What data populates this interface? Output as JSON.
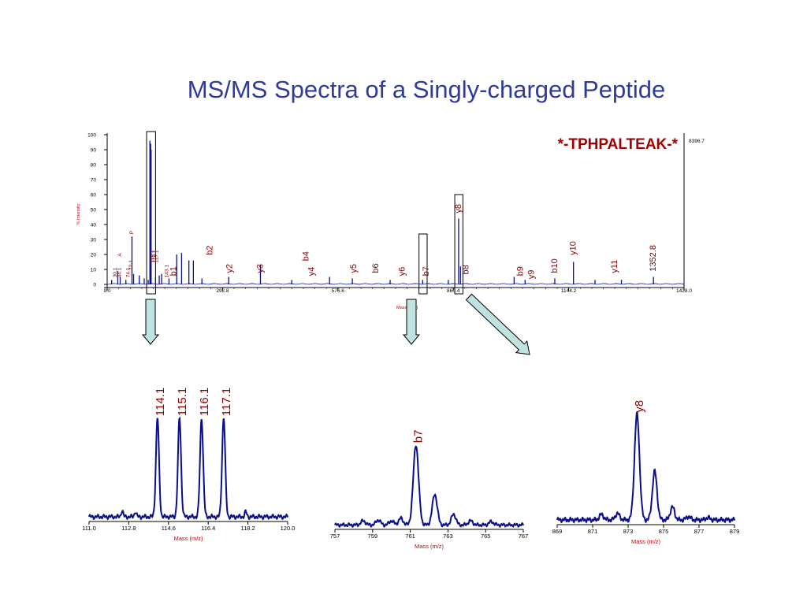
{
  "title": "MS/MS Spectra of a Singly-charged Peptide",
  "colors": {
    "title": "#2e3b9b",
    "trace": "#0a0f8a",
    "label": "#8b0000",
    "axis": "#000000",
    "arrow_fill": "#bfe3e0"
  },
  "chart_data": [
    {
      "type": "line",
      "name": "full-spectrum",
      "peptide": "*-TPHPALTEAK-*",
      "max_intensity_label": "8396.7",
      "ylabel": "% Intensity",
      "xlabel": "Mass (m/z)",
      "xlim": [
        9.0,
        1428.0
      ],
      "ylim": [
        0,
        100
      ],
      "x_ticks": [
        "9.0",
        "292.8",
        "576.6",
        "860.4",
        "1144.2",
        "1428.0"
      ],
      "y_ticks": [
        "0",
        "10",
        "20",
        "30",
        "40",
        "50",
        "60",
        "70",
        "80",
        "90",
        "100"
      ],
      "peaks": [
        {
          "x": 20.0,
          "y": 3
        },
        {
          "x": 35.0,
          "y": 9
        },
        {
          "x": 41.0,
          "y": 5
        },
        {
          "x": 55.0,
          "y": 3
        },
        {
          "x": 70.0,
          "y": 32
        },
        {
          "x": 74.0,
          "y": 7
        },
        {
          "x": 88.0,
          "y": 6
        },
        {
          "x": 100.0,
          "y": 4
        },
        {
          "x": 110.0,
          "y": 3
        },
        {
          "x": 114.1,
          "y": 96
        },
        {
          "x": 115.1,
          "y": 85
        },
        {
          "x": 116.1,
          "y": 94
        },
        {
          "x": 117.1,
          "y": 90
        },
        {
          "x": 128.0,
          "y": 5
        },
        {
          "x": 137.0,
          "y": 6
        },
        {
          "x": 143.0,
          "y": 7
        },
        {
          "x": 161.0,
          "y": 4
        },
        {
          "x": 180.0,
          "y": 20
        },
        {
          "x": 192.0,
          "y": 21
        },
        {
          "x": 210.0,
          "y": 16
        },
        {
          "x": 221.0,
          "y": 16
        },
        {
          "x": 242.0,
          "y": 4
        },
        {
          "x": 308.0,
          "y": 5
        },
        {
          "x": 386.0,
          "y": 13
        },
        {
          "x": 463.0,
          "y": 3
        },
        {
          "x": 556.0,
          "y": 5
        },
        {
          "x": 612.0,
          "y": 4
        },
        {
          "x": 705.0,
          "y": 3
        },
        {
          "x": 785.0,
          "y": 3
        },
        {
          "x": 848.0,
          "y": 3
        },
        {
          "x": 873.5,
          "y": 44
        },
        {
          "x": 878.0,
          "y": 12
        },
        {
          "x": 1010.0,
          "y": 5
        },
        {
          "x": 1037.0,
          "y": 3
        },
        {
          "x": 1110.0,
          "y": 4
        },
        {
          "x": 1156.0,
          "y": 15
        },
        {
          "x": 1209.0,
          "y": 3
        },
        {
          "x": 1274.0,
          "y": 3
        },
        {
          "x": 1352.8,
          "y": 5
        }
      ],
      "annotations": [
        {
          "text": "b2",
          "x": 262.0,
          "y": 18
        },
        {
          "text": "y2",
          "x": 311.0,
          "y": 6
        },
        {
          "text": "y3",
          "x": 386.0,
          "y": 6
        },
        {
          "text": "b4",
          "x": 499.0,
          "y": 14
        },
        {
          "text": "y4",
          "x": 512.0,
          "y": 4
        },
        {
          "text": "y5",
          "x": 616.0,
          "y": 6
        },
        {
          "text": "b6",
          "x": 670.0,
          "y": 6
        },
        {
          "text": "y6",
          "x": 735.0,
          "y": 4
        },
        {
          "text": "b7",
          "x": 794.0,
          "y": 4
        },
        {
          "text": "b8",
          "x": 892.0,
          "y": 5
        },
        {
          "text": "y8",
          "x": 873.5,
          "y": 46
        },
        {
          "text": "b9",
          "x": 1026.0,
          "y": 4
        },
        {
          "text": "y9",
          "x": 1053.0,
          "y": 2
        },
        {
          "text": "b10",
          "x": 1110.0,
          "y": 6
        },
        {
          "text": "y10",
          "x": 1156.0,
          "y": 18
        },
        {
          "text": "y11",
          "x": 1258.0,
          "y": 6
        },
        {
          "text": "1352.8",
          "x": 1352.8,
          "y": 7
        },
        {
          "text": "b1",
          "x": 173.0,
          "y": 4
        },
        {
          "text": "P",
          "x": 70.0,
          "y": 32
        },
        {
          "text": "A",
          "x": 41.0,
          "y": 17
        },
        {
          "text": "30.1",
          "x": 29.0,
          "y": 3
        },
        {
          "text": "44.1",
          "x": 40.0,
          "y": 3
        },
        {
          "text": "72.1",
          "x": 68.0,
          "y": 8
        },
        {
          "text": "74.1",
          "x": 61.0,
          "y": 3
        },
        {
          "text": "114.1",
          "x": 119.0,
          "y": 13
        },
        {
          "text": "116.1",
          "x": 125.0,
          "y": 13
        },
        {
          "text": "117.1",
          "x": 131.0,
          "y": 13
        },
        {
          "text": "143.1",
          "x": 156.0,
          "y": 3
        }
      ],
      "highlight_boxes": [
        {
          "x1": 106.0,
          "x2": 128.0
        },
        {
          "x1": 776.0,
          "x2": 796.0
        },
        {
          "x1": 864.0,
          "x2": 884.0
        }
      ]
    },
    {
      "type": "line",
      "name": "zoom-reporter-ions",
      "xlabel": "Mass (m/z)",
      "xlim": [
        111.0,
        120.0
      ],
      "x_ticks": [
        "111.0",
        "112.8",
        "114.6",
        "116.4",
        "118.2",
        "120.0"
      ],
      "peaks": [
        {
          "x": 112.5,
          "y": 0.06,
          "w": 0.045
        },
        {
          "x": 113.1,
          "y": 0.05,
          "w": 0.045
        },
        {
          "x": 114.1,
          "y": 0.96,
          "w": 0.07
        },
        {
          "x": 115.1,
          "y": 0.96,
          "w": 0.07
        },
        {
          "x": 116.1,
          "y": 0.96,
          "w": 0.07
        },
        {
          "x": 117.1,
          "y": 0.96,
          "w": 0.07
        },
        {
          "x": 118.1,
          "y": 0.05,
          "w": 0.045
        }
      ],
      "annotations": [
        {
          "text": "114.1",
          "x": 114.1
        },
        {
          "text": "115.1",
          "x": 115.1
        },
        {
          "text": "116.1",
          "x": 116.1
        },
        {
          "text": "117.1",
          "x": 117.1
        }
      ]
    },
    {
      "type": "line",
      "name": "zoom-b7",
      "xlabel": "Mass (m/z)",
      "xlim": [
        757,
        767
      ],
      "x_ticks": [
        "757",
        "759",
        "761",
        "763",
        "765",
        "767"
      ],
      "peaks": [
        {
          "x": 758.5,
          "y": 0.05,
          "w": 0.12
        },
        {
          "x": 759.3,
          "y": 0.06,
          "w": 0.12
        },
        {
          "x": 760.0,
          "y": 0.05,
          "w": 0.12
        },
        {
          "x": 760.5,
          "y": 0.08,
          "w": 0.12
        },
        {
          "x": 761.3,
          "y": 0.96,
          "w": 0.14
        },
        {
          "x": 762.3,
          "y": 0.37,
          "w": 0.13
        },
        {
          "x": 763.3,
          "y": 0.13,
          "w": 0.12
        },
        {
          "x": 764.2,
          "y": 0.05,
          "w": 0.12
        },
        {
          "x": 765.3,
          "y": 0.04,
          "w": 0.12
        }
      ],
      "annotations": [
        {
          "text": "b7",
          "x": 761.3
        }
      ]
    },
    {
      "type": "line",
      "name": "zoom-y8",
      "xlabel": "Mass (m/z)",
      "xlim": [
        869,
        879
      ],
      "x_ticks": [
        "869",
        "871",
        "873",
        "875",
        "877",
        "879"
      ],
      "peaks": [
        {
          "x": 871.5,
          "y": 0.05,
          "w": 0.12
        },
        {
          "x": 872.4,
          "y": 0.06,
          "w": 0.12
        },
        {
          "x": 873.5,
          "y": 0.98,
          "w": 0.14
        },
        {
          "x": 874.5,
          "y": 0.45,
          "w": 0.13
        },
        {
          "x": 875.5,
          "y": 0.12,
          "w": 0.12
        },
        {
          "x": 876.4,
          "y": 0.03,
          "w": 0.12
        },
        {
          "x": 877.5,
          "y": 0.02,
          "w": 0.12
        }
      ],
      "annotations": [
        {
          "text": "y8",
          "x": 873.5
        }
      ]
    }
  ]
}
